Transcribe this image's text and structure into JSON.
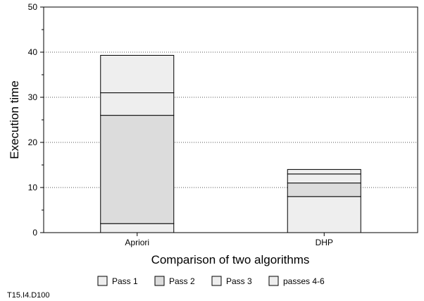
{
  "chart_data": {
    "type": "bar",
    "stacked": true,
    "categories": [
      "Apriori",
      "DHP"
    ],
    "series": [
      {
        "name": "Pass 1",
        "values": [
          2,
          8
        ],
        "color": "#eeeeee"
      },
      {
        "name": "Pass 2",
        "values": [
          24,
          3
        ],
        "color": "#dcdcdc"
      },
      {
        "name": "Pass 3",
        "values": [
          5,
          2
        ],
        "color": "#eeeeee"
      },
      {
        "name": "passes 4-6",
        "values": [
          8.3,
          1
        ],
        "color": "#eeeeee"
      }
    ],
    "title": "",
    "xlabel": "Comparison of two algorithms",
    "ylabel": "Execution time",
    "ylim": [
      0,
      50
    ],
    "yticks": [
      0,
      10,
      20,
      30,
      40,
      50
    ],
    "grid": true,
    "legend_position": "bottom"
  },
  "footnote": "T15.I4.D100"
}
